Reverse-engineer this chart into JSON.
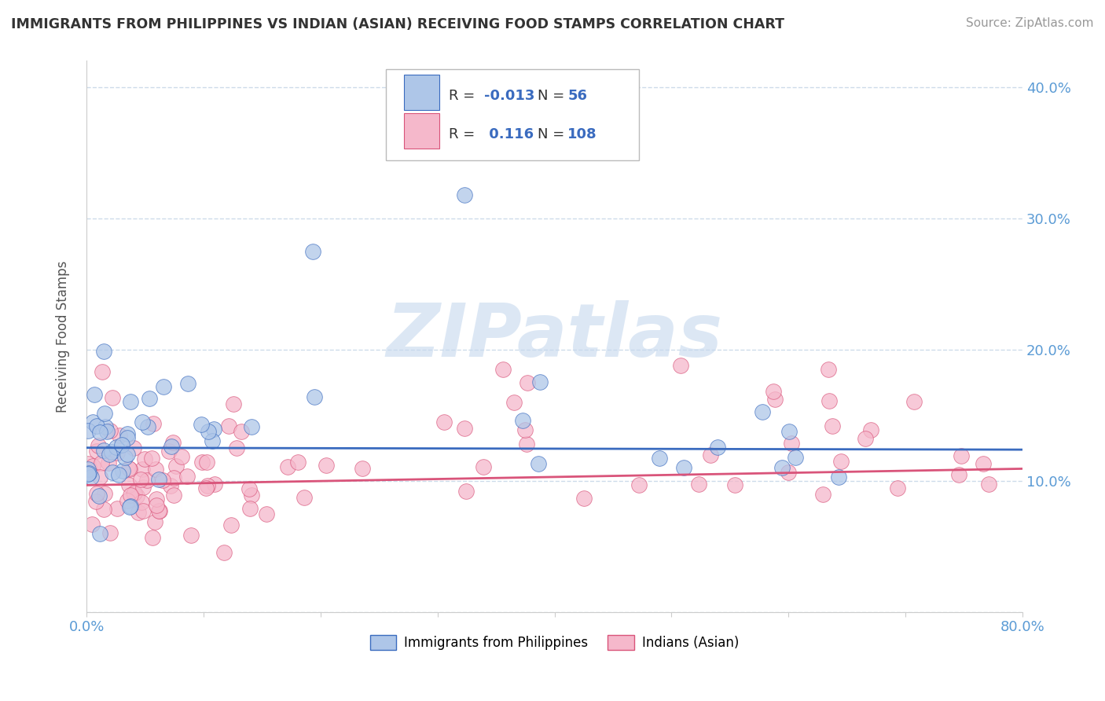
{
  "title": "IMMIGRANTS FROM PHILIPPINES VS INDIAN (ASIAN) RECEIVING FOOD STAMPS CORRELATION CHART",
  "source": "Source: ZipAtlas.com",
  "ylabel": "Receiving Food Stamps",
  "xlim": [
    0.0,
    0.8
  ],
  "ylim": [
    0.0,
    0.42
  ],
  "R1": -0.013,
  "N1": 56,
  "R2": 0.116,
  "N2": 108,
  "color1": "#aec6e8",
  "color2": "#f5b8cb",
  "line_color1": "#3a6bbf",
  "line_color2": "#d9547a",
  "watermark_color": "#c5d8ee",
  "background_color": "#ffffff",
  "grid_color": "#c8d8e8",
  "tick_color": "#5b9bd5",
  "legend_label1": "Immigrants from Philippines",
  "legend_label2": "Indians (Asian)",
  "title_color": "#333333",
  "source_color": "#999999"
}
